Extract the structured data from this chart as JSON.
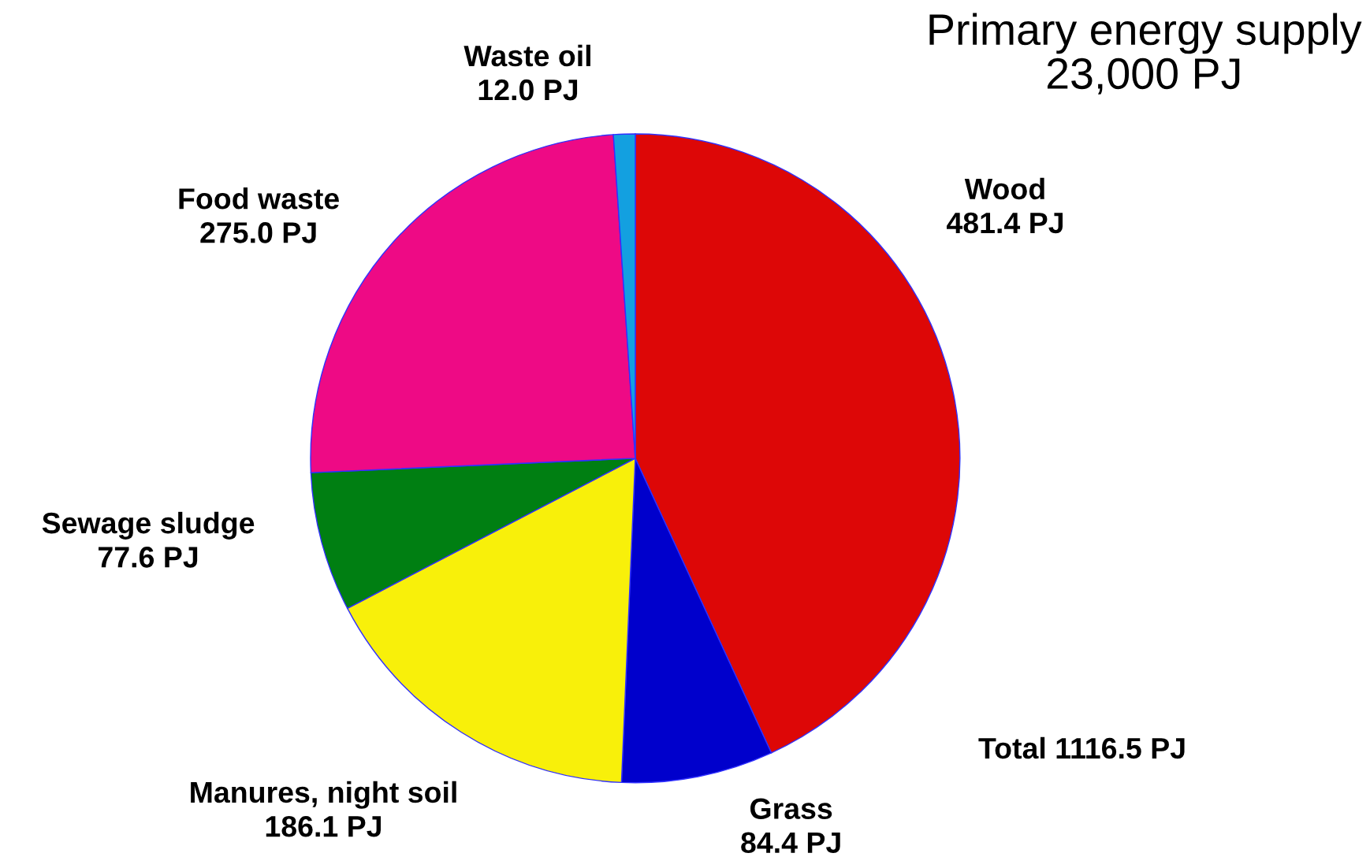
{
  "chart_data": {
    "type": "pie",
    "title": "Primary energy supply\n23,000 PJ",
    "categories": [
      "Wood",
      "Grass",
      "Manures, night soil",
      "Sewage sludge",
      "Food waste",
      "Waste oil"
    ],
    "values": [
      481.4,
      84.4,
      186.1,
      77.6,
      275.0,
      12.0
    ],
    "value_labels": [
      "481.4 PJ",
      "84.4 PJ",
      "186.1 PJ",
      "77.6 PJ",
      "275.0 PJ",
      "12.0 PJ"
    ],
    "colors": [
      "#dd0707",
      "#0000cc",
      "#f8f00a",
      "#007f12",
      "#ee0a85",
      "#13a0e0"
    ],
    "annotations": [
      "Total 1116.5 PJ"
    ],
    "legend": false
  }
}
